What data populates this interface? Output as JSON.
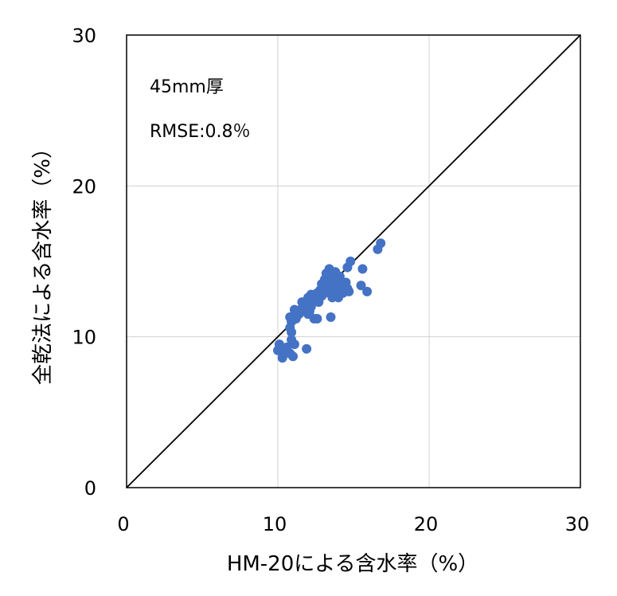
{
  "chart_data": {
    "type": "scatter",
    "xlabel": "HM-20による含水率（%）",
    "ylabel": "全乾法による含水率（%）",
    "xlim": [
      0,
      30
    ],
    "ylim": [
      0,
      30
    ],
    "xticks": [
      "0",
      "10",
      "20",
      "30"
    ],
    "yticks": [
      "0",
      "10",
      "20",
      "30"
    ],
    "grid": true,
    "annotations": [
      "45mm厚",
      "RMSE:0.8％"
    ],
    "reference_line": {
      "x": [
        0,
        30
      ],
      "y": [
        0,
        30
      ]
    },
    "marker_color": "#4472C4",
    "series": [
      {
        "points": [
          [
            10.0,
            9.1
          ],
          [
            10.1,
            9.5
          ],
          [
            10.3,
            8.6
          ],
          [
            10.5,
            9.0
          ],
          [
            10.6,
            9.3
          ],
          [
            10.8,
            8.9
          ],
          [
            10.9,
            9.8
          ],
          [
            11.0,
            8.7
          ],
          [
            11.1,
            9.5
          ],
          [
            10.9,
            10.3
          ],
          [
            10.8,
            10.6
          ],
          [
            10.9,
            11.0
          ],
          [
            10.8,
            11.3
          ],
          [
            11.0,
            11.3
          ],
          [
            11.2,
            11.2
          ],
          [
            11.4,
            11.5
          ],
          [
            11.1,
            11.8
          ],
          [
            11.5,
            11.8
          ],
          [
            11.7,
            12.0
          ],
          [
            11.6,
            12.3
          ],
          [
            11.9,
            12.1
          ],
          [
            12.0,
            11.5
          ],
          [
            12.1,
            11.7
          ],
          [
            12.2,
            12.0
          ],
          [
            12.0,
            12.6
          ],
          [
            12.3,
            12.4
          ],
          [
            12.2,
            12.8
          ],
          [
            12.4,
            11.2
          ],
          [
            12.6,
            11.2
          ],
          [
            11.9,
            9.2
          ],
          [
            12.5,
            12.6
          ],
          [
            12.6,
            12.9
          ],
          [
            12.7,
            12.3
          ],
          [
            12.8,
            13.1
          ],
          [
            12.9,
            12.7
          ],
          [
            12.9,
            13.5
          ],
          [
            13.0,
            13.2
          ],
          [
            13.1,
            12.9
          ],
          [
            13.1,
            13.8
          ],
          [
            13.2,
            13.4
          ],
          [
            13.2,
            14.2
          ],
          [
            13.3,
            13.0
          ],
          [
            13.4,
            13.6
          ],
          [
            13.4,
            14.5
          ],
          [
            13.5,
            13.2
          ],
          [
            13.5,
            11.3
          ],
          [
            13.6,
            12.6
          ],
          [
            13.6,
            13.9
          ],
          [
            13.7,
            13.4
          ],
          [
            13.8,
            14.3
          ],
          [
            13.8,
            13.0
          ],
          [
            13.9,
            13.6
          ],
          [
            14.0,
            12.6
          ],
          [
            14.0,
            13.3
          ],
          [
            14.1,
            14.0
          ],
          [
            14.2,
            13.6
          ],
          [
            14.3,
            12.9
          ],
          [
            14.4,
            13.3
          ],
          [
            14.5,
            13.6
          ],
          [
            14.6,
            14.6
          ],
          [
            14.7,
            13.0
          ],
          [
            14.8,
            15.0
          ],
          [
            14.6,
            13.2
          ],
          [
            15.5,
            13.4
          ],
          [
            15.6,
            14.5
          ],
          [
            15.9,
            13.0
          ],
          [
            16.6,
            15.8
          ],
          [
            16.8,
            16.2
          ]
        ]
      }
    ]
  }
}
